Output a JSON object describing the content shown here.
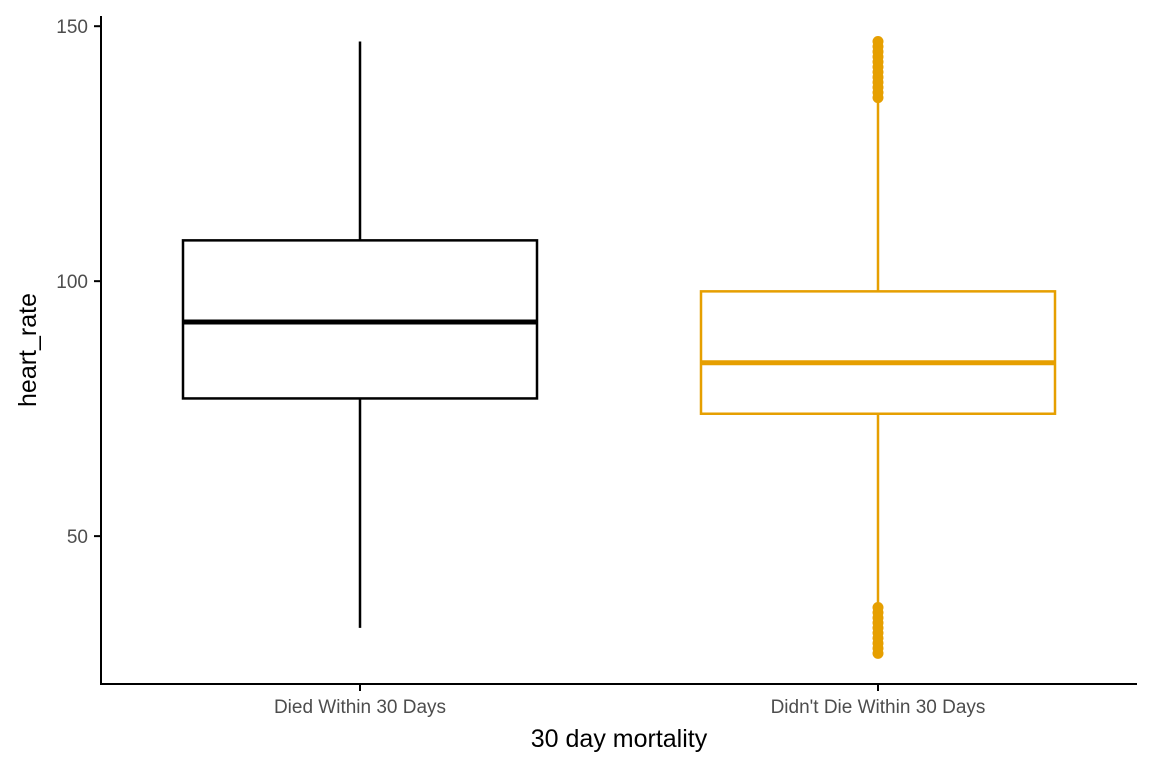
{
  "chart_data": {
    "type": "boxplot",
    "title": "",
    "xlabel": "30 day mortality",
    "ylabel": "heart_rate",
    "ylim": [
      21,
      152
    ],
    "yticks": [
      50,
      100,
      150
    ],
    "grid": false,
    "legend": "none",
    "categories": [
      "Died Within 30 Days",
      "Didn't Die Within 30 Days"
    ],
    "boxes": [
      {
        "category": "Died Within 30 Days",
        "whisker_low": 32,
        "q1": 77,
        "median": 92,
        "q3": 108,
        "whisker_high": 147,
        "outliers": [],
        "color": "#000000"
      },
      {
        "category": "Didn't Die Within 30 Days",
        "whisker_low": 37,
        "q1": 74,
        "median": 84,
        "q3": 98,
        "whisker_high": 135,
        "outliers": [
          27,
          28,
          29,
          30,
          31,
          32,
          33,
          34,
          35,
          36,
          136,
          137,
          138,
          139,
          140,
          141,
          142,
          143,
          144,
          145,
          146,
          147
        ],
        "color": "#E69F00"
      }
    ]
  }
}
